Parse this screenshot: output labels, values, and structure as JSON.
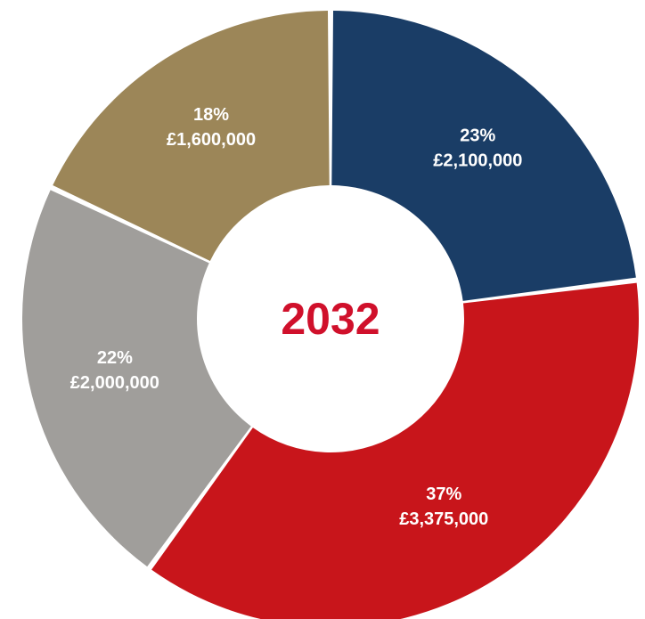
{
  "chart_data": {
    "type": "pie",
    "center_text": "2032",
    "slices": [
      {
        "percent_label": "23%",
        "value_label": "£2,100,000",
        "value": 2100000,
        "percent": 23,
        "color": "#1a3d66"
      },
      {
        "percent_label": "37%",
        "value_label": "£3,375,000",
        "value": 3375000,
        "percent": 37,
        "color": "#c8151b"
      },
      {
        "percent_label": "22%",
        "value_label": "£2,000,000",
        "value": 2000000,
        "percent": 22,
        "color": "#a09e9b"
      },
      {
        "percent_label": "18%",
        "value_label": "£1,600,000",
        "value": 1600000,
        "percent": 18,
        "color": "#9c8658"
      }
    ],
    "center_color": "#d0102b"
  }
}
